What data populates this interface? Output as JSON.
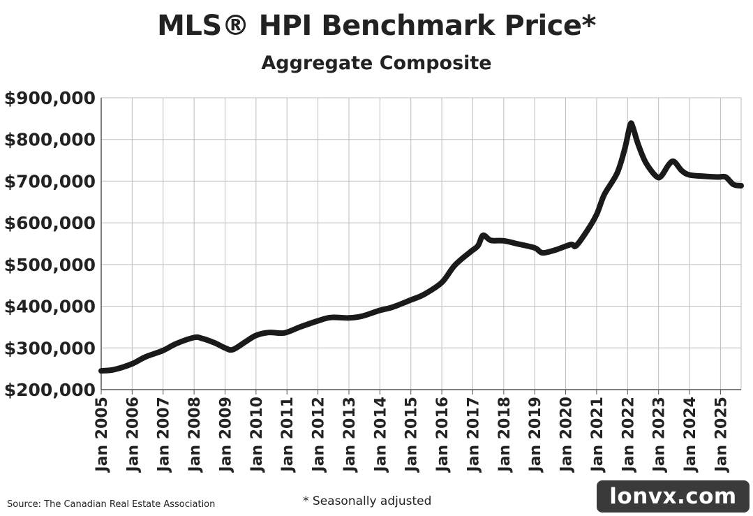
{
  "chart_data": {
    "type": "line",
    "title": "MLS® HPI Benchmark Price*",
    "subtitle": "Aggregate Composite",
    "xlabel": "",
    "ylabel": "",
    "ylim": [
      200000,
      900000
    ],
    "xlim": [
      "2005-01",
      "2025-09"
    ],
    "grid": true,
    "legend": "none",
    "y_ticks": [
      "$200,000",
      "$300,000",
      "$400,000",
      "$500,000",
      "$600,000",
      "$700,000",
      "$800,000",
      "$900,000"
    ],
    "x_ticks": [
      "Jan 2005",
      "Jan 2006",
      "Jan 2007",
      "Jan 2008",
      "Jan 2009",
      "Jan 2010",
      "Jan 2011",
      "Jan 2012",
      "Jan 2013",
      "Jan 2014",
      "Jan 2015",
      "Jan 2016",
      "Jan 2017",
      "Jan 2018",
      "Jan 2019",
      "Jan 2020",
      "Jan 2021",
      "Jan 2022",
      "Jan 2023",
      "Jan 2024",
      "Jan 2025"
    ],
    "line_color": "#1a1a1a",
    "series": [
      {
        "x": [
          "2005-01",
          "2005-06",
          "2006-01",
          "2006-06",
          "2007-01",
          "2007-06",
          "2008-01",
          "2008-04",
          "2008-09",
          "2009-01",
          "2009-04",
          "2009-09",
          "2010-01",
          "2010-06",
          "2010-12",
          "2011-06",
          "2012-01",
          "2012-06",
          "2013-01",
          "2013-06",
          "2014-01",
          "2014-06",
          "2015-01",
          "2015-06",
          "2016-01",
          "2016-06",
          "2016-12",
          "2017-03",
          "2017-05",
          "2017-08",
          "2018-01",
          "2018-06",
          "2019-01",
          "2019-04",
          "2019-09",
          "2020-03",
          "2020-05",
          "2020-09",
          "2021-01",
          "2021-04",
          "2021-09",
          "2021-12",
          "2022-02",
          "2022-03",
          "2022-05",
          "2022-08",
          "2022-12",
          "2023-02",
          "2023-05",
          "2023-07",
          "2023-10",
          "2024-01",
          "2024-06",
          "2024-12",
          "2025-03",
          "2025-06",
          "2025-09"
        ],
        "y": [
          245000,
          248000,
          262000,
          278000,
          294000,
          310000,
          325000,
          323000,
          312000,
          300000,
          296000,
          315000,
          330000,
          337000,
          336000,
          350000,
          365000,
          373000,
          372000,
          376000,
          390000,
          398000,
          415000,
          428000,
          457000,
          498000,
          530000,
          545000,
          570000,
          558000,
          557000,
          550000,
          540000,
          528000,
          535000,
          548000,
          545000,
          578000,
          620000,
          668000,
          720000,
          780000,
          835000,
          830000,
          790000,
          745000,
          712000,
          712000,
          740000,
          747000,
          725000,
          715000,
          712000,
          710000,
          710000,
          692000,
          689000
        ]
      }
    ]
  },
  "source": "Source: The Canadian Real Estate Association",
  "footnote": "* Seasonally adjusted",
  "watermark": "lonvx.com"
}
